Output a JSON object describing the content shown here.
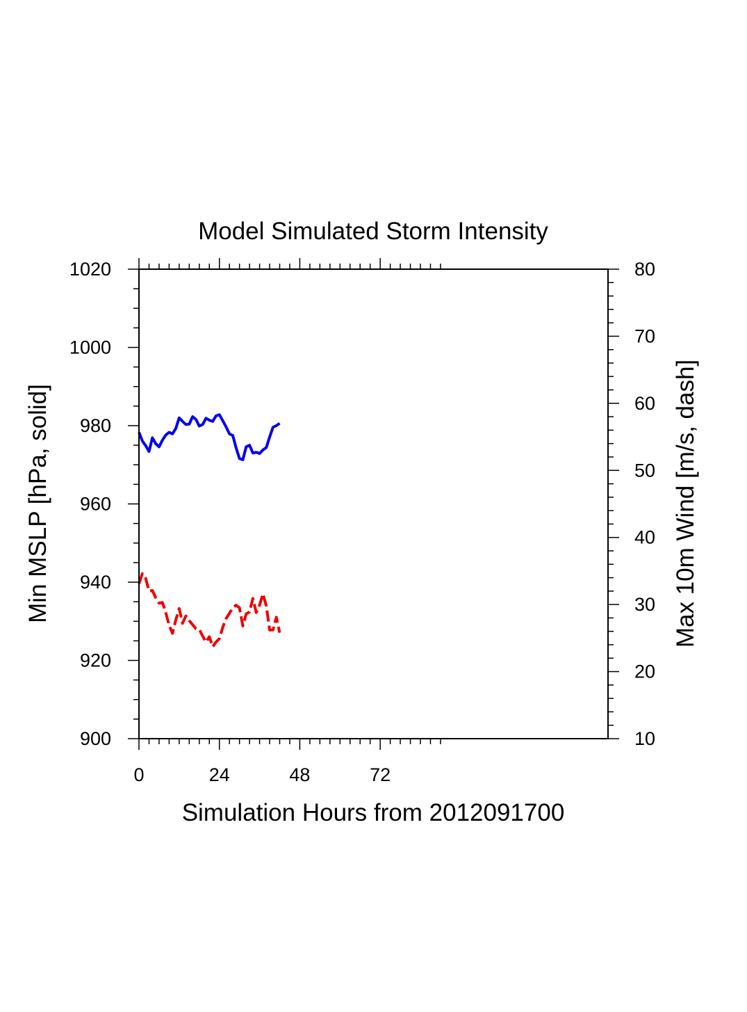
{
  "chart_data": {
    "type": "line",
    "title": "Model Simulated Storm Intensity",
    "xlabel": "Simulation Hours from 2012091700",
    "ylabel_left": "Min MSLP  [hPa, solid]",
    "ylabel_right": "Max 10m Wind  [m/s, dash]",
    "xlim": [
      0,
      140
    ],
    "ylim_left": [
      900,
      1020
    ],
    "ylim_right": [
      10,
      80
    ],
    "x_ticks": [
      0,
      24,
      48,
      72
    ],
    "x_tick_labels": [
      "0",
      "24",
      "48",
      "72"
    ],
    "y_left_ticks": [
      900,
      920,
      940,
      960,
      980,
      1000,
      1020
    ],
    "y_left_tick_labels": [
      "900",
      "920",
      "940",
      "960",
      "980",
      "1000",
      "1020"
    ],
    "y_right_ticks": [
      10,
      20,
      30,
      40,
      50,
      60,
      70,
      80
    ],
    "y_right_tick_labels": [
      "10",
      "20",
      "30",
      "40",
      "50",
      "60",
      "70",
      "80"
    ],
    "grid": false,
    "series": [
      {
        "name": "Min MSLP",
        "axis": "left",
        "style": "solid",
        "color": "#0000ee",
        "x": [
          0,
          1,
          2,
          3,
          4,
          5,
          6,
          7,
          8,
          9,
          10,
          11,
          12,
          13,
          14,
          15,
          16,
          17,
          18,
          19,
          20,
          21,
          22,
          23,
          24,
          25,
          26,
          27,
          28,
          29,
          30,
          31,
          32,
          33,
          34,
          35,
          36,
          37,
          38,
          39,
          40,
          41,
          42
        ],
        "values": [
          978.3,
          976.1,
          974.9,
          973.4,
          976.9,
          975.4,
          974.6,
          976.3,
          977.6,
          978.3,
          977.9,
          979.3,
          982,
          981.1,
          980.3,
          980.4,
          982.3,
          981.6,
          979.9,
          980.3,
          981.9,
          981.4,
          981.1,
          982.5,
          982.8,
          981.3,
          979.7,
          977.9,
          977.5,
          974.3,
          971.6,
          971.3,
          974.6,
          975,
          973,
          973.2,
          972.9,
          973.8,
          974.4,
          977.1,
          979.6,
          980,
          980.6
        ]
      },
      {
        "name": "Max 10m Wind",
        "axis": "right",
        "style": "dash",
        "color": "#ee0000",
        "x": [
          0,
          1,
          2,
          3,
          4,
          5,
          6,
          7,
          8,
          9,
          10,
          11,
          12,
          13,
          14,
          15,
          16,
          17,
          18,
          19,
          20,
          21,
          22,
          23,
          24,
          25,
          26,
          27,
          28,
          29,
          30,
          31,
          32,
          33,
          34,
          35,
          36,
          37,
          38,
          39,
          40,
          41,
          42
        ],
        "values": [
          33.1,
          34.6,
          33.9,
          32,
          32.1,
          31,
          30.2,
          30.3,
          28.8,
          26.9,
          25.7,
          27.7,
          29.4,
          27.2,
          28.3,
          27.6,
          27,
          26.4,
          26.3,
          25.3,
          24.4,
          25.2,
          23.7,
          24.4,
          24.9,
          26.6,
          27.9,
          28.7,
          29.5,
          29.9,
          29.5,
          26.8,
          28.6,
          28.9,
          30.9,
          28.8,
          29.9,
          31.6,
          29.8,
          26.2,
          26.2,
          28.1,
          25.8
        ]
      }
    ]
  }
}
